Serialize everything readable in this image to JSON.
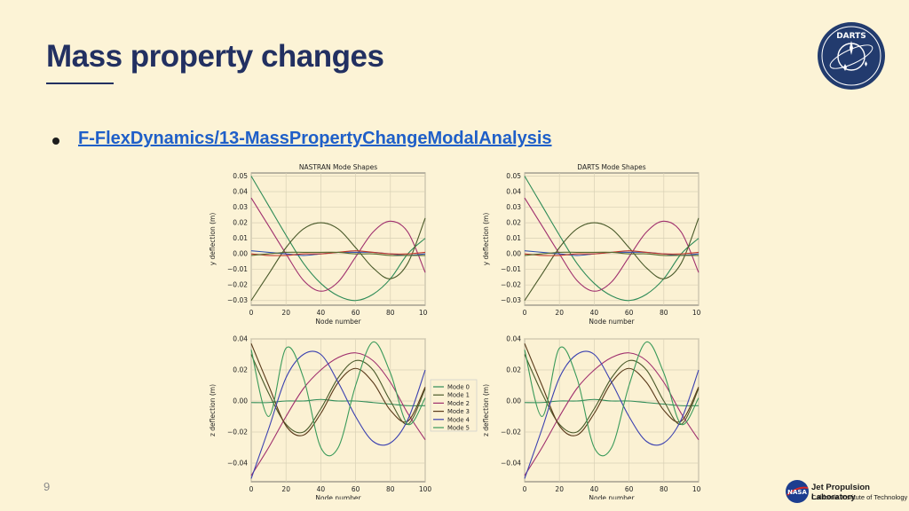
{
  "slide": {
    "title": "Mass property changes",
    "link_text": "F-FlexDynamics/13-MassPropertyChangeModalAnalysis",
    "page_number": "9"
  },
  "logos": {
    "darts": "DARTS",
    "nasa": "NASA",
    "jpl_line1": "Jet Propulsion Laboratory",
    "jpl_line2": "California Institute of Technology"
  },
  "colors": {
    "title": "#223061",
    "link": "#1f5fc8",
    "background": "#fcf3d6"
  },
  "chart_data": [
    {
      "id": "nastran-y",
      "type": "line",
      "title": "NASTRAN Mode Shapes",
      "xlabel": "Node number",
      "ylabel": "y  deflection (m)",
      "xlim": [
        0,
        100
      ],
      "ylim": [
        -0.033,
        0.052
      ],
      "xticks": [
        0,
        20,
        40,
        60,
        80,
        100
      ],
      "yticks": [
        -0.03,
        -0.02,
        -0.01,
        0.0,
        0.01,
        0.02,
        0.03,
        0.04,
        0.05
      ],
      "grid": true,
      "series": [
        {
          "color": "#2e8b57",
          "x": [
            0,
            10,
            20,
            30,
            40,
            50,
            60,
            70,
            80,
            90,
            100
          ],
          "y": [
            0.05,
            0.031,
            0.012,
            -0.006,
            -0.019,
            -0.027,
            -0.03,
            -0.026,
            -0.016,
            0.0,
            0.01
          ]
        },
        {
          "color": "#a0306e",
          "x": [
            0,
            10,
            20,
            30,
            40,
            50,
            60,
            70,
            80,
            90,
            100
          ],
          "y": [
            0.036,
            0.018,
            0.0,
            -0.017,
            -0.024,
            -0.018,
            -0.002,
            0.014,
            0.021,
            0.014,
            -0.012
          ]
        },
        {
          "color": "#4a5a2a",
          "x": [
            0,
            10,
            20,
            30,
            40,
            50,
            60,
            70,
            80,
            90,
            100
          ],
          "y": [
            -0.03,
            -0.013,
            0.004,
            0.016,
            0.02,
            0.016,
            0.004,
            -0.009,
            -0.016,
            -0.006,
            0.023
          ]
        },
        {
          "color": "#3050b0",
          "x": [
            0,
            10,
            20,
            30,
            40,
            50,
            60,
            70,
            80,
            90,
            100
          ],
          "y": [
            0.002,
            0.001,
            0.0,
            -0.001,
            0.0,
            0.001,
            0.001,
            0.001,
            0.0,
            -0.001,
            0.0
          ]
        },
        {
          "color": "#c0392b",
          "x": [
            0,
            10,
            20,
            30,
            40,
            50,
            60,
            70,
            80,
            90,
            100
          ],
          "y": [
            0.0,
            -0.001,
            -0.001,
            0.0,
            0.0,
            0.001,
            0.002,
            0.001,
            0.0,
            0.0,
            0.001
          ]
        },
        {
          "color": "#556b2f",
          "x": [
            0,
            10,
            20,
            30,
            40,
            50,
            60,
            70,
            80,
            90,
            100
          ],
          "y": [
            -0.001,
            0.0,
            0.001,
            0.001,
            0.001,
            0.001,
            0.0,
            0.0,
            -0.001,
            -0.001,
            -0.001
          ]
        }
      ]
    },
    {
      "id": "darts-y",
      "type": "line",
      "title": "DARTS Mode Shapes",
      "xlabel": "Node number",
      "ylabel": "y  deflection (m)",
      "xlim": [
        0,
        100
      ],
      "ylim": [
        -0.033,
        0.052
      ],
      "xticks": [
        0,
        20,
        40,
        60,
        80,
        100
      ],
      "yticks": [
        -0.03,
        -0.02,
        -0.01,
        0.0,
        0.01,
        0.02,
        0.03,
        0.04,
        0.05
      ],
      "grid": true,
      "series": [
        {
          "color": "#2e8b57",
          "x": [
            0,
            10,
            20,
            30,
            40,
            50,
            60,
            70,
            80,
            90,
            100
          ],
          "y": [
            0.05,
            0.031,
            0.012,
            -0.006,
            -0.019,
            -0.027,
            -0.03,
            -0.026,
            -0.016,
            0.0,
            0.01
          ]
        },
        {
          "color": "#a0306e",
          "x": [
            0,
            10,
            20,
            30,
            40,
            50,
            60,
            70,
            80,
            90,
            100
          ],
          "y": [
            0.036,
            0.018,
            0.0,
            -0.017,
            -0.024,
            -0.018,
            -0.002,
            0.014,
            0.021,
            0.014,
            -0.012
          ]
        },
        {
          "color": "#4a5a2a",
          "x": [
            0,
            10,
            20,
            30,
            40,
            50,
            60,
            70,
            80,
            90,
            100
          ],
          "y": [
            -0.03,
            -0.013,
            0.004,
            0.016,
            0.02,
            0.016,
            0.004,
            -0.009,
            -0.016,
            -0.006,
            0.023
          ]
        },
        {
          "color": "#3050b0",
          "x": [
            0,
            10,
            20,
            30,
            40,
            50,
            60,
            70,
            80,
            90,
            100
          ],
          "y": [
            0.002,
            0.001,
            0.0,
            -0.001,
            0.0,
            0.001,
            0.001,
            0.001,
            0.0,
            -0.001,
            0.0
          ]
        },
        {
          "color": "#c0392b",
          "x": [
            0,
            10,
            20,
            30,
            40,
            50,
            60,
            70,
            80,
            90,
            100
          ],
          "y": [
            0.0,
            -0.001,
            -0.001,
            0.0,
            0.0,
            0.001,
            0.002,
            0.001,
            0.0,
            0.0,
            0.001
          ]
        },
        {
          "color": "#556b2f",
          "x": [
            0,
            10,
            20,
            30,
            40,
            50,
            60,
            70,
            80,
            90,
            100
          ],
          "y": [
            -0.001,
            0.0,
            0.001,
            0.001,
            0.001,
            0.001,
            0.0,
            0.0,
            -0.001,
            -0.001,
            -0.001
          ]
        }
      ]
    },
    {
      "id": "nastran-z",
      "type": "line",
      "title": "",
      "xlabel": "Node number",
      "ylabel": "z  deflection (m)",
      "xlim": [
        0,
        100
      ],
      "ylim": [
        -0.052,
        0.04
      ],
      "xticks": [
        0,
        20,
        40,
        60,
        80,
        100
      ],
      "yticks": [
        -0.04,
        -0.02,
        0.0,
        0.02,
        0.04
      ],
      "grid": true,
      "legend": [
        "Mode 0",
        "Mode 1",
        "Mode 2",
        "Mode 3",
        "Mode 4",
        "Mode 5"
      ],
      "series": [
        {
          "name": "Mode 0",
          "color": "#2e8b57",
          "x": [
            0,
            10,
            20,
            30,
            40,
            50,
            60,
            70,
            80,
            90,
            100
          ],
          "y": [
            -0.001,
            -0.001,
            0.0,
            0.0,
            0.001,
            0.0,
            0.0,
            -0.001,
            -0.002,
            -0.003,
            -0.003
          ]
        },
        {
          "name": "Mode 1",
          "color": "#4a5a2a",
          "x": [
            0,
            10,
            20,
            30,
            40,
            50,
            60,
            70,
            80,
            90,
            100
          ],
          "y": [
            0.03,
            0.005,
            -0.015,
            -0.02,
            -0.005,
            0.015,
            0.026,
            0.02,
            0.0,
            -0.015,
            0.008
          ]
        },
        {
          "name": "Mode 2",
          "color": "#a0306e",
          "x": [
            0,
            10,
            20,
            30,
            40,
            50,
            60,
            70,
            80,
            90,
            100
          ],
          "y": [
            -0.048,
            -0.03,
            -0.01,
            0.008,
            0.02,
            0.028,
            0.031,
            0.026,
            0.012,
            -0.008,
            -0.025
          ]
        },
        {
          "name": "Mode 3",
          "color": "#5a3a1a",
          "x": [
            0,
            10,
            20,
            30,
            40,
            50,
            60,
            70,
            80,
            90,
            100
          ],
          "y": [
            0.037,
            0.01,
            -0.016,
            -0.022,
            -0.008,
            0.012,
            0.021,
            0.012,
            -0.006,
            -0.013,
            0.009
          ]
        },
        {
          "name": "Mode 4",
          "color": "#3a40b0",
          "x": [
            0,
            10,
            20,
            30,
            40,
            50,
            60,
            70,
            80,
            90,
            100
          ],
          "y": [
            -0.05,
            -0.018,
            0.015,
            0.03,
            0.03,
            0.012,
            -0.01,
            -0.026,
            -0.027,
            -0.012,
            0.02
          ]
        },
        {
          "name": "Mode 5",
          "color": "#3a9a5a",
          "x": [
            0,
            10,
            20,
            30,
            40,
            50,
            60,
            70,
            80,
            90,
            100
          ],
          "y": [
            0.033,
            -0.01,
            0.034,
            0.015,
            -0.03,
            -0.03,
            0.01,
            0.038,
            0.018,
            -0.015,
            0.002
          ]
        }
      ]
    },
    {
      "id": "darts-z",
      "type": "line",
      "title": "",
      "xlabel": "Node number",
      "ylabel": "z  deflection (m)",
      "xlim": [
        0,
        100
      ],
      "ylim": [
        -0.052,
        0.04
      ],
      "xticks": [
        0,
        20,
        40,
        60,
        80,
        100
      ],
      "yticks": [
        -0.04,
        -0.02,
        0.0,
        0.02,
        0.04
      ],
      "grid": true,
      "series": [
        {
          "color": "#2e8b57",
          "x": [
            0,
            10,
            20,
            30,
            40,
            50,
            60,
            70,
            80,
            90,
            100
          ],
          "y": [
            -0.001,
            -0.001,
            0.0,
            0.0,
            0.001,
            0.0,
            0.0,
            -0.001,
            -0.002,
            -0.003,
            -0.003
          ]
        },
        {
          "color": "#4a5a2a",
          "x": [
            0,
            10,
            20,
            30,
            40,
            50,
            60,
            70,
            80,
            90,
            100
          ],
          "y": [
            0.03,
            0.005,
            -0.015,
            -0.02,
            -0.005,
            0.015,
            0.026,
            0.02,
            0.0,
            -0.015,
            0.008
          ]
        },
        {
          "color": "#a0306e",
          "x": [
            0,
            10,
            20,
            30,
            40,
            50,
            60,
            70,
            80,
            90,
            100
          ],
          "y": [
            -0.048,
            -0.03,
            -0.01,
            0.008,
            0.02,
            0.028,
            0.031,
            0.026,
            0.012,
            -0.008,
            -0.025
          ]
        },
        {
          "color": "#5a3a1a",
          "x": [
            0,
            10,
            20,
            30,
            40,
            50,
            60,
            70,
            80,
            90,
            100
          ],
          "y": [
            0.037,
            0.01,
            -0.016,
            -0.022,
            -0.008,
            0.012,
            0.021,
            0.012,
            -0.006,
            -0.013,
            0.009
          ]
        },
        {
          "color": "#3a40b0",
          "x": [
            0,
            10,
            20,
            30,
            40,
            50,
            60,
            70,
            80,
            90,
            100
          ],
          "y": [
            -0.05,
            -0.018,
            0.015,
            0.03,
            0.03,
            0.012,
            -0.01,
            -0.026,
            -0.027,
            -0.012,
            0.02
          ]
        },
        {
          "color": "#3a9a5a",
          "x": [
            0,
            10,
            20,
            30,
            40,
            50,
            60,
            70,
            80,
            90,
            100
          ],
          "y": [
            0.033,
            -0.01,
            0.034,
            0.015,
            -0.03,
            -0.03,
            0.01,
            0.038,
            0.018,
            -0.015,
            0.002
          ]
        }
      ]
    }
  ]
}
